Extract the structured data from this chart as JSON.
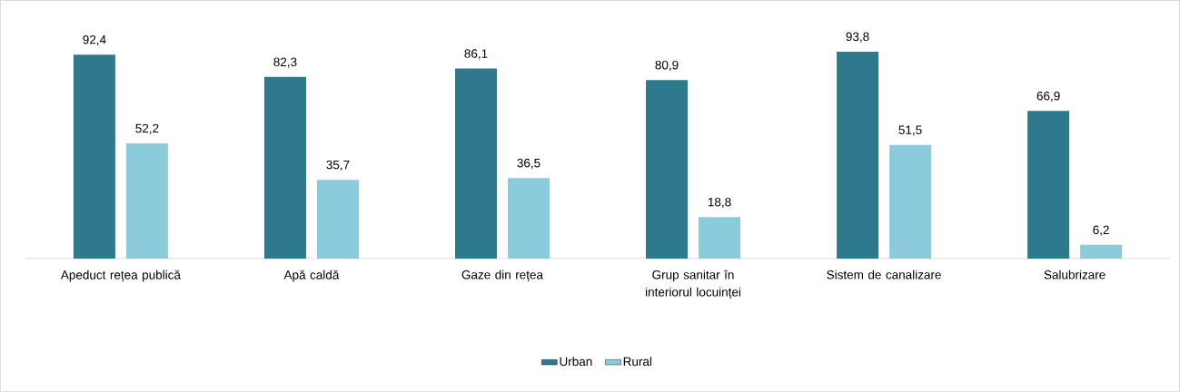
{
  "chart_data": {
    "type": "bar",
    "categories": [
      "Apeduct rețea publică",
      "Apă caldă",
      "Gaze din rețea",
      "Grup sanitar în interiorul locuinței",
      "Sistem de canalizare",
      "Salubrizare"
    ],
    "series": [
      {
        "name": "Urban",
        "color": "#2e7a8c",
        "values": [
          92.4,
          82.3,
          86.1,
          80.9,
          93.8,
          66.9
        ],
        "value_labels": [
          "92,4",
          "82,3",
          "86,1",
          "80,9",
          "93,8",
          "66,9"
        ]
      },
      {
        "name": "Rural",
        "color": "#8ccbdb",
        "values": [
          52.2,
          35.7,
          36.5,
          18.8,
          51.5,
          6.2
        ],
        "value_labels": [
          "52,2",
          "35,7",
          "36,5",
          "18,8",
          "51,5",
          "6,2"
        ]
      }
    ],
    "legend": "bottom"
  }
}
